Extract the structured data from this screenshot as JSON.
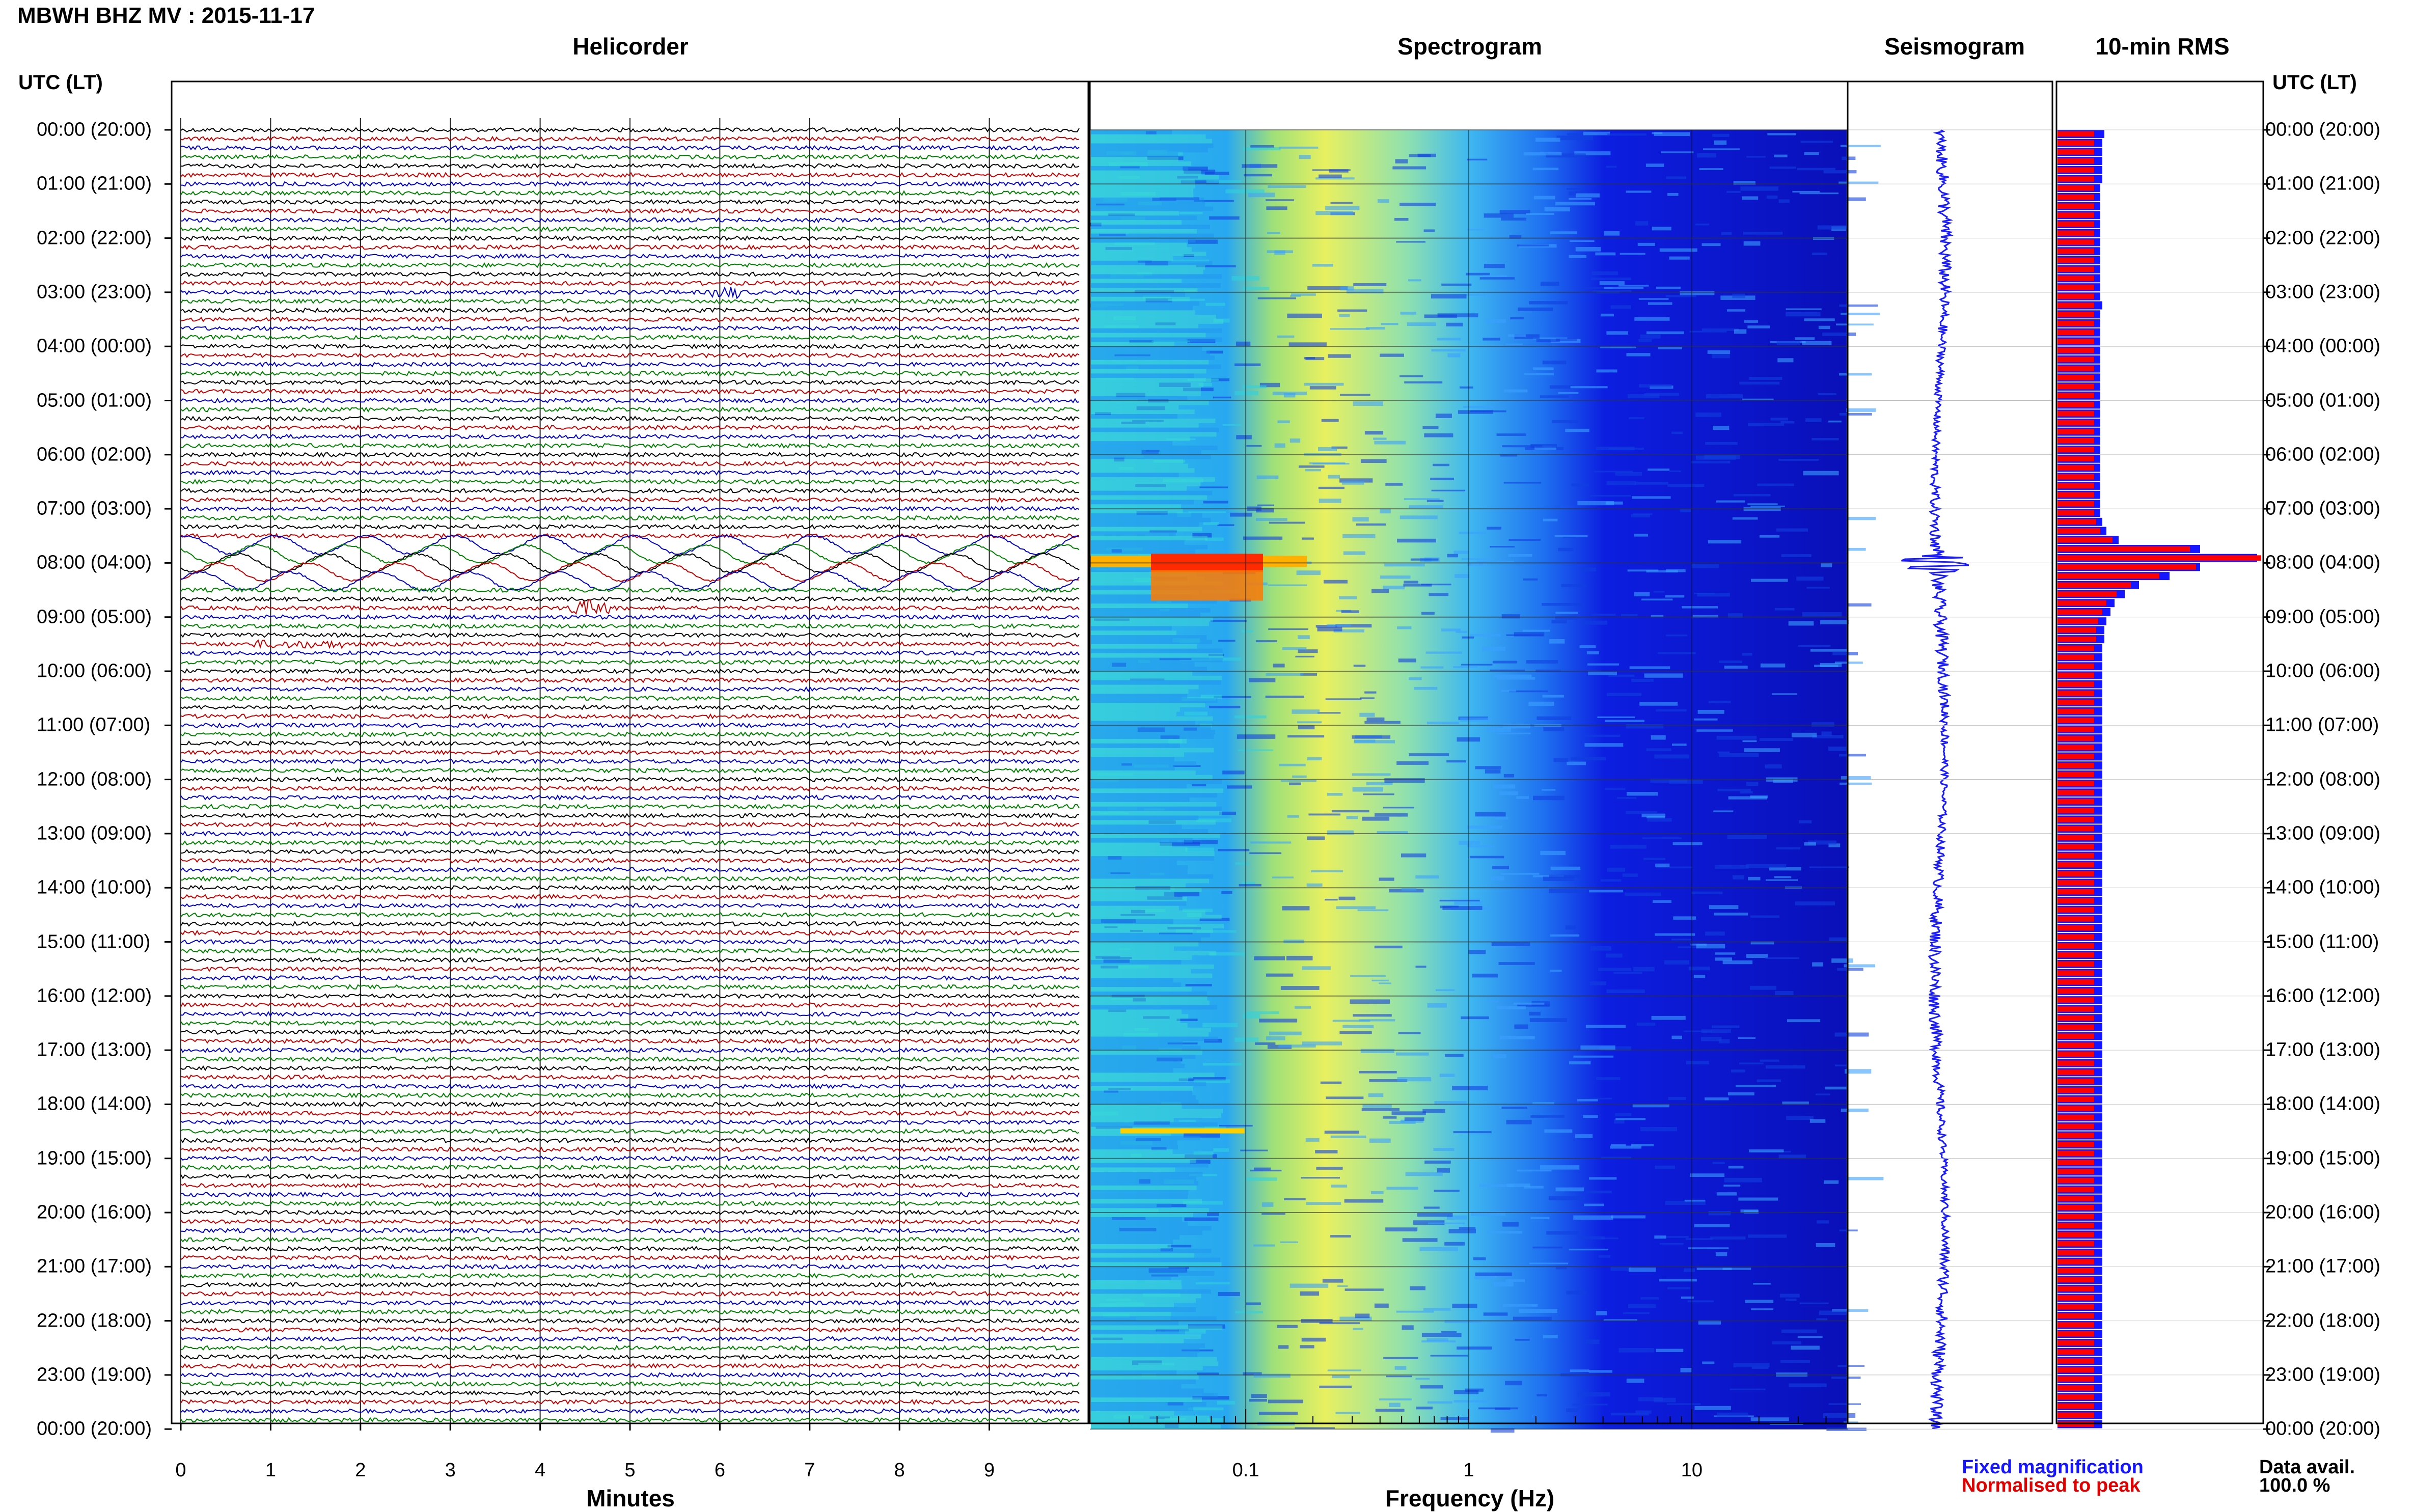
{
  "header": {
    "station_title": "MBWH BHZ MV : 2015-11-17",
    "utc_heading_left": "UTC (LT)",
    "utc_heading_right": "UTC (LT)"
  },
  "panels": {
    "helicorder": "Helicorder",
    "spectrogram": "Spectrogram",
    "seismogram": "Seismogram",
    "rms": "10-min RMS"
  },
  "time_labels": [
    "00:00 (20:00)",
    "01:00 (21:00)",
    "02:00 (22:00)",
    "03:00 (23:00)",
    "04:00 (00:00)",
    "05:00 (01:00)",
    "06:00 (02:00)",
    "07:00 (03:00)",
    "08:00 (04:00)",
    "09:00 (05:00)",
    "10:00 (06:00)",
    "11:00 (07:00)",
    "12:00 (08:00)",
    "13:00 (09:00)",
    "14:00 (10:00)",
    "15:00 (11:00)",
    "16:00 (12:00)",
    "17:00 (13:00)",
    "18:00 (14:00)",
    "19:00 (15:00)",
    "20:00 (16:00)",
    "21:00 (17:00)",
    "22:00 (18:00)",
    "23:00 (19:00)",
    "00:00 (20:00)"
  ],
  "footer": {
    "minutes_axis_label": "Minutes",
    "frequency_axis_label": "Frequency (Hz)",
    "legend_fixed": "Fixed magnification",
    "legend_normalised": "Normalised to peak",
    "data_avail_label": "Data avail.",
    "data_avail_value": "100.0 %"
  },
  "colors": {
    "helicorder_traces": [
      "#000000",
      "#c00000",
      "#0000c0",
      "#008000"
    ],
    "seismogram": "#1a1aff",
    "rms_fixed": "#1515ff",
    "rms_normalised": "#ff0000",
    "spectrogram_low": "#00007f",
    "spectrogram_high": "#ff2000"
  },
  "chart_data": [
    {
      "type": "line",
      "title": "Helicorder",
      "xlabel": "Minutes",
      "x_ticks": [
        0,
        1,
        2,
        3,
        4,
        5,
        6,
        7,
        8,
        9
      ],
      "xlim": [
        0,
        10
      ],
      "rows_per_hour": 6,
      "rows": 144,
      "events": [
        {
          "time": "07:50",
          "minute_start": 1.8,
          "minute_end": 10,
          "note_visible": false
        },
        {
          "time": "07:50-08:10",
          "minute_start": 0,
          "minute_end": 10
        },
        {
          "time": "08:50",
          "minute_start": 4.3,
          "minute_end": 4.8
        },
        {
          "time": "09:30",
          "minute_start": 0.8,
          "minute_end": 1.8
        },
        {
          "time": "03:00",
          "minute_start": 6.0,
          "minute_end": 6.2
        }
      ]
    },
    {
      "type": "heatmap",
      "title": "Spectrogram",
      "xlabel": "Frequency (Hz)",
      "x_scale": "log",
      "x_ticks": [
        "0.1",
        "1",
        "10"
      ],
      "xlim": [
        0.02,
        50
      ],
      "peak_events": [
        {
          "time": "08:00",
          "freq_range_hz": [
            0.02,
            0.1
          ],
          "level": "high"
        },
        {
          "time": "18:30",
          "freq_range_hz": [
            0.02,
            0.08
          ],
          "level": "medium"
        }
      ]
    },
    {
      "type": "line",
      "title": "Seismogram",
      "event_time": "08:00"
    },
    {
      "type": "bar",
      "title": "10-min RMS",
      "orientation": "horizontal",
      "series": [
        {
          "name": "Fixed magnification",
          "values": [
            0.23,
            0.22,
            0.22,
            0.22,
            0.22,
            0.22,
            0.21,
            0.21,
            0.21,
            0.21,
            0.21,
            0.21,
            0.21,
            0.21,
            0.21,
            0.21,
            0.21,
            0.21,
            0.21,
            0.22,
            0.21,
            0.21,
            0.21,
            0.21,
            0.21,
            0.21,
            0.21,
            0.21,
            0.21,
            0.21,
            0.21,
            0.21,
            0.21,
            0.21,
            0.21,
            0.21,
            0.21,
            0.21,
            0.21,
            0.21,
            0.21,
            0.21,
            0.21,
            0.22,
            0.24,
            0.3,
            0.7,
            0.98,
            0.7,
            0.55,
            0.4,
            0.33,
            0.28,
            0.26,
            0.24,
            0.23,
            0.23,
            0.22,
            0.22,
            0.22,
            0.22,
            0.22,
            0.22,
            0.22,
            0.22,
            0.22,
            0.22,
            0.22,
            0.22,
            0.22,
            0.22,
            0.22,
            0.22,
            0.22,
            0.22,
            0.22,
            0.22,
            0.22,
            0.22,
            0.22,
            0.22,
            0.22,
            0.22,
            0.22,
            0.22,
            0.22,
            0.22,
            0.22,
            0.22,
            0.22,
            0.22,
            0.22,
            0.22,
            0.22,
            0.22,
            0.22,
            0.22,
            0.22,
            0.22,
            0.22,
            0.22,
            0.22,
            0.22,
            0.22,
            0.22,
            0.22,
            0.22,
            0.22,
            0.22,
            0.22,
            0.22,
            0.22,
            0.22,
            0.22,
            0.22,
            0.22,
            0.22,
            0.22,
            0.22,
            0.22,
            0.22,
            0.22,
            0.22,
            0.22,
            0.22,
            0.22,
            0.22,
            0.22,
            0.22,
            0.22,
            0.22,
            0.22,
            0.22,
            0.22,
            0.22,
            0.22,
            0.22,
            0.22,
            0.22,
            0.22,
            0.22,
            0.22,
            0.22,
            0.22
          ]
        },
        {
          "name": "Normalised to peak",
          "values": [
            0.18,
            0.18,
            0.18,
            0.18,
            0.18,
            0.18,
            0.18,
            0.18,
            0.18,
            0.18,
            0.18,
            0.18,
            0.18,
            0.18,
            0.18,
            0.18,
            0.18,
            0.18,
            0.18,
            0.18,
            0.18,
            0.18,
            0.18,
            0.18,
            0.18,
            0.18,
            0.18,
            0.18,
            0.18,
            0.18,
            0.18,
            0.18,
            0.18,
            0.18,
            0.18,
            0.18,
            0.18,
            0.18,
            0.18,
            0.18,
            0.18,
            0.18,
            0.18,
            0.19,
            0.21,
            0.27,
            0.65,
            1.0,
            0.68,
            0.5,
            0.36,
            0.29,
            0.24,
            0.22,
            0.2,
            0.19,
            0.19,
            0.18,
            0.18,
            0.18,
            0.18,
            0.18,
            0.18,
            0.18,
            0.18,
            0.18,
            0.18,
            0.18,
            0.18,
            0.18,
            0.18,
            0.18,
            0.18,
            0.18,
            0.18,
            0.18,
            0.18,
            0.18,
            0.18,
            0.18,
            0.18,
            0.18,
            0.18,
            0.18,
            0.18,
            0.18,
            0.18,
            0.18,
            0.18,
            0.18,
            0.18,
            0.18,
            0.18,
            0.18,
            0.18,
            0.18,
            0.18,
            0.18,
            0.18,
            0.18,
            0.18,
            0.18,
            0.18,
            0.18,
            0.18,
            0.18,
            0.18,
            0.18,
            0.18,
            0.18,
            0.18,
            0.18,
            0.18,
            0.18,
            0.18,
            0.18,
            0.18,
            0.18,
            0.18,
            0.18,
            0.18,
            0.18,
            0.18,
            0.18,
            0.18,
            0.18,
            0.18,
            0.18,
            0.18,
            0.18,
            0.18,
            0.18,
            0.18,
            0.18,
            0.18,
            0.18,
            0.18,
            0.18,
            0.18,
            0.18,
            0.18,
            0.18,
            0.18,
            0.18
          ]
        }
      ]
    }
  ]
}
